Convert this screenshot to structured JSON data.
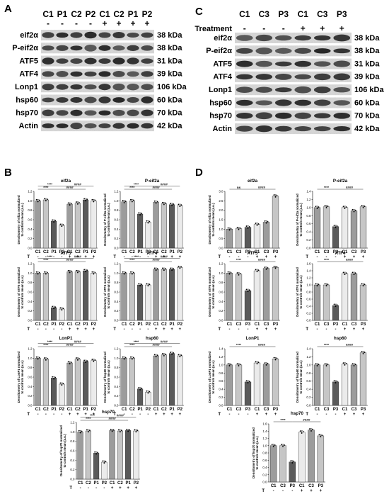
{
  "panels": {
    "A": "A",
    "B": "B",
    "C": "C",
    "D": "D"
  },
  "blotA": {
    "lanes": [
      "C1",
      "P1",
      "C2",
      "P2",
      "C1",
      "C2",
      "P1",
      "P2"
    ],
    "signs": [
      "-",
      "-",
      "-",
      "-",
      "+",
      "+",
      "+",
      "+"
    ],
    "proteins": [
      "eif2α",
      "P-eif2α",
      "ATF5",
      "ATF4",
      "Lonp1",
      "hsp60",
      "hsp70",
      "Actin"
    ],
    "kda": [
      "38 kDa",
      "38 kDa",
      "31 kDa",
      "39 kDa",
      "106 kDa",
      "60 kDa",
      "70 kDa",
      "42 kDa"
    ]
  },
  "blotC": {
    "treatment_label": "Treatment",
    "lanes": [
      "C1",
      "C3",
      "P3",
      "C1",
      "C3",
      "P3"
    ],
    "signs": [
      "-",
      "-",
      "-",
      "+",
      "+",
      "+"
    ],
    "proteins": [
      "eif2α",
      "P-eif2α",
      "ATF5",
      "ATF4",
      "Lonp1",
      "hsp60",
      "hsp70",
      "Actin"
    ],
    "kda": [
      "38 kDa",
      "38 kDa",
      "31 kDa",
      "39 kDa",
      "106 kDa",
      "60 kDa",
      "70 kDa",
      "42 kDa"
    ]
  },
  "chart_data": [
    {
      "type": "bar",
      "panel": "B",
      "title": "eif2a",
      "ylabel": "Densitometry of eif2a normalized to controls mean (a.u.)",
      "categories": [
        "C1",
        "C2",
        "P1",
        "P2",
        "C1",
        "C2",
        "P1",
        "P2"
      ],
      "treatment": [
        "-",
        "-",
        "-",
        "-",
        "+",
        "+",
        "+",
        "+"
      ],
      "values": [
        1.0,
        1.02,
        0.57,
        0.48,
        0.93,
        0.95,
        1.02,
        1.0
      ],
      "colors": [
        "#9c9c9c",
        "#c6c6c6",
        "#5a5a5a",
        "#ebebeb",
        "#9c9c9c",
        "#c6c6c6",
        "#5a5a5a",
        "#ebebeb"
      ],
      "ylim": [
        0,
        1.2
      ],
      "yticks": [
        "0.0",
        "0.2",
        "0.4",
        "0.6",
        "0.8",
        "1.0",
        "1.2"
      ],
      "significance": [
        {
          "from": 0,
          "to": 2,
          "label": "****",
          "level": 0
        },
        {
          "from": 0,
          "to": 3,
          "label": "****",
          "level": 1
        },
        {
          "from": 2,
          "to": 6,
          "label": "####",
          "level": 0
        },
        {
          "from": 3,
          "to": 7,
          "label": "####",
          "level": 1
        }
      ]
    },
    {
      "type": "bar",
      "panel": "B",
      "title": "P-eif2a",
      "ylabel": "Densitometry of P-eif2a normalized to controls mean (a.u.)",
      "categories": [
        "C1",
        "C2",
        "P1",
        "P2",
        "C1",
        "C2",
        "P1",
        "P2"
      ],
      "treatment": [
        "-",
        "-",
        "-",
        "-",
        "+",
        "+",
        "+",
        "+"
      ],
      "values": [
        0.98,
        1.0,
        0.72,
        0.55,
        0.97,
        0.94,
        0.92,
        0.9
      ],
      "colors": [
        "#9c9c9c",
        "#c6c6c6",
        "#5a5a5a",
        "#ebebeb",
        "#9c9c9c",
        "#c6c6c6",
        "#5a5a5a",
        "#ebebeb"
      ],
      "ylim": [
        0,
        1.2
      ],
      "yticks": [
        "0.0",
        "0.2",
        "0.4",
        "0.6",
        "0.8",
        "1.0",
        "1.2"
      ],
      "significance": [
        {
          "from": 0,
          "to": 2,
          "label": "****",
          "level": 0
        },
        {
          "from": 0,
          "to": 3,
          "label": "****",
          "level": 1
        },
        {
          "from": 2,
          "to": 6,
          "label": "####",
          "level": 0
        },
        {
          "from": 3,
          "to": 7,
          "label": "####",
          "level": 1
        }
      ]
    },
    {
      "type": "bar",
      "panel": "D",
      "title": "eif2a",
      "ylabel": "Densitometry of eif2a normalized to controls mean (a.u.)",
      "categories": [
        "C1",
        "C3",
        "P3",
        "C1",
        "C3",
        "P3"
      ],
      "treatment": [
        "-",
        "-",
        "-",
        "+",
        "+",
        "+"
      ],
      "values": [
        1.0,
        1.03,
        1.1,
        1.25,
        1.37,
        2.75
      ],
      "colors": [
        "#9c9c9c",
        "#c6c6c6",
        "#5a5a5a",
        "#ebebeb",
        "#9c9c9c",
        "#c6c6c6"
      ],
      "ylim": [
        0,
        3.0
      ],
      "yticks": [
        "0.0",
        "0.5",
        "1.0",
        "1.5",
        "2.0",
        "2.5",
        "3.0"
      ],
      "significance": [
        {
          "from": 0,
          "to": 2,
          "label": "ns",
          "level": 0
        },
        {
          "from": 2,
          "to": 5,
          "label": "####",
          "level": 0
        }
      ]
    },
    {
      "type": "bar",
      "panel": "D",
      "title": "P-eif2a",
      "ylabel": "Densitometry of P-eif2a normalized to controls mean (a.u.)",
      "categories": [
        "C1",
        "C3",
        "P3",
        "C1",
        "C3",
        "P3"
      ],
      "treatment": [
        "-",
        "-",
        "-",
        "+",
        "+",
        "+"
      ],
      "values": [
        1.0,
        1.02,
        0.53,
        1.0,
        0.92,
        1.02
      ],
      "colors": [
        "#9c9c9c",
        "#c6c6c6",
        "#5a5a5a",
        "#ebebeb",
        "#9c9c9c",
        "#c6c6c6"
      ],
      "ylim": [
        0,
        1.4
      ],
      "yticks": [
        "0.0",
        "0.2",
        "0.4",
        "0.6",
        "0.8",
        "1.0",
        "1.2",
        "1.4"
      ],
      "significance": [
        {
          "from": 0,
          "to": 2,
          "label": "****",
          "level": 0
        },
        {
          "from": 2,
          "to": 5,
          "label": "####",
          "level": 0
        }
      ]
    },
    {
      "type": "bar",
      "panel": "B",
      "title": "ATF5",
      "ylabel": "Densitometry of ATF5 normalized to controls mean (a.u.)",
      "categories": [
        "C1",
        "C2",
        "P1",
        "P2",
        "C1",
        "C2",
        "P1",
        "P2"
      ],
      "treatment": [
        "-",
        "-",
        "-",
        "-",
        "+",
        "+",
        "+",
        "+"
      ],
      "values": [
        1.0,
        1.0,
        0.27,
        0.24,
        1.03,
        1.03,
        1.05,
        1.0
      ],
      "colors": [
        "#9c9c9c",
        "#c6c6c6",
        "#5a5a5a",
        "#ebebeb",
        "#9c9c9c",
        "#c6c6c6",
        "#5a5a5a",
        "#ebebeb"
      ],
      "ylim": [
        0,
        1.2
      ],
      "yticks": [
        "0.0",
        "0.2",
        "0.4",
        "0.6",
        "0.8",
        "1.0",
        "1.2"
      ],
      "significance": [
        {
          "from": 0,
          "to": 2,
          "label": "****",
          "level": 0
        },
        {
          "from": 0,
          "to": 3,
          "label": "****",
          "level": 1
        },
        {
          "from": 2,
          "to": 6,
          "label": "####",
          "level": 0
        },
        {
          "from": 3,
          "to": 7,
          "label": "####",
          "level": 1
        }
      ]
    },
    {
      "type": "bar",
      "panel": "B",
      "title": "ATF4",
      "ylabel": "Densitometry of ATF4 normalized to controls mean (a.u.)",
      "categories": [
        "C1",
        "C2",
        "P1",
        "P2",
        "C1",
        "C2",
        "P1",
        "P2"
      ],
      "treatment": [
        "-",
        "-",
        "-",
        "-",
        "+",
        "+",
        "+",
        "+"
      ],
      "values": [
        1.0,
        1.0,
        0.75,
        0.75,
        1.08,
        1.08,
        1.08,
        1.12
      ],
      "colors": [
        "#9c9c9c",
        "#c6c6c6",
        "#5a5a5a",
        "#ebebeb",
        "#9c9c9c",
        "#c6c6c6",
        "#5a5a5a",
        "#ebebeb"
      ],
      "ylim": [
        0,
        1.2
      ],
      "yticks": [
        "0.0",
        "0.2",
        "0.4",
        "0.6",
        "0.8",
        "1.0",
        "1.2"
      ],
      "significance": [
        {
          "from": 0,
          "to": 2,
          "label": "****",
          "level": 0
        },
        {
          "from": 0,
          "to": 3,
          "label": "****",
          "level": 1
        },
        {
          "from": 2,
          "to": 6,
          "label": "####",
          "level": 0
        },
        {
          "from": 3,
          "to": 7,
          "label": "####",
          "level": 1
        }
      ]
    },
    {
      "type": "bar",
      "panel": "D",
      "title": "ATF5",
      "ylabel": "Densitometry of ATF5 normalized to controls mean (a.u.)",
      "categories": [
        "C1",
        "C3",
        "P3",
        "C1",
        "C3",
        "P3"
      ],
      "treatment": [
        "-",
        "-",
        "-",
        "+",
        "+",
        "+"
      ],
      "values": [
        1.0,
        0.98,
        0.63,
        1.05,
        1.1,
        1.12
      ],
      "colors": [
        "#9c9c9c",
        "#c6c6c6",
        "#5a5a5a",
        "#ebebeb",
        "#9c9c9c",
        "#c6c6c6"
      ],
      "ylim": [
        0,
        1.2
      ],
      "yticks": [
        "0.0",
        "0.2",
        "0.4",
        "0.6",
        "0.8",
        "1.0",
        "1.2"
      ],
      "significance": [
        {
          "from": 0,
          "to": 2,
          "label": "****",
          "level": 0
        },
        {
          "from": 2,
          "to": 5,
          "label": "####",
          "level": 0
        }
      ]
    },
    {
      "type": "bar",
      "panel": "D",
      "title": "ATF4",
      "ylabel": "Densitometry of ATF4 normalized to controls mean (a.u.)",
      "categories": [
        "C1",
        "C3",
        "P3",
        "C1",
        "C3",
        "P3"
      ],
      "treatment": [
        "-",
        "-",
        "-",
        "+",
        "+",
        "+"
      ],
      "values": [
        1.0,
        1.0,
        0.42,
        1.32,
        1.32,
        1.0
      ],
      "colors": [
        "#9c9c9c",
        "#c6c6c6",
        "#5a5a5a",
        "#ebebeb",
        "#9c9c9c",
        "#c6c6c6"
      ],
      "ylim": [
        0,
        1.6
      ],
      "yticks": [
        "0.0",
        "0.2",
        "0.4",
        "0.6",
        "0.8",
        "1.0",
        "1.2",
        "1.4",
        "1.6"
      ],
      "significance": [
        {
          "from": 0,
          "to": 2,
          "label": "****",
          "level": 0
        },
        {
          "from": 2,
          "to": 5,
          "label": "####",
          "level": 0
        }
      ]
    },
    {
      "type": "bar",
      "panel": "B",
      "title": "LonP1",
      "ylabel": "Densitometry of LonP1 normalized to controls mean (a.u.)",
      "categories": [
        "C1",
        "C2",
        "P1",
        "P2",
        "C1",
        "C2",
        "P1",
        "P2"
      ],
      "treatment": [
        "-",
        "-",
        "-",
        "-",
        "+",
        "+",
        "+",
        "+"
      ],
      "values": [
        1.0,
        0.98,
        0.58,
        0.45,
        0.9,
        0.98,
        0.93,
        0.95
      ],
      "colors": [
        "#9c9c9c",
        "#c6c6c6",
        "#5a5a5a",
        "#ebebeb",
        "#9c9c9c",
        "#c6c6c6",
        "#5a5a5a",
        "#ebebeb"
      ],
      "ylim": [
        0,
        1.2
      ],
      "yticks": [
        "0.0",
        "0.2",
        "0.4",
        "0.6",
        "0.8",
        "1.0",
        "1.2"
      ],
      "significance": [
        {
          "from": 0,
          "to": 2,
          "label": "****",
          "level": 0
        },
        {
          "from": 0,
          "to": 3,
          "label": "****",
          "level": 1
        },
        {
          "from": 2,
          "to": 6,
          "label": "####",
          "level": 0
        },
        {
          "from": 3,
          "to": 7,
          "label": "####",
          "level": 1
        }
      ]
    },
    {
      "type": "bar",
      "panel": "B",
      "title": "hsp60",
      "ylabel": "Densitometry of hsp60 normalized to controls mean (a.u.)",
      "categories": [
        "C1",
        "C2",
        "P1",
        "P2",
        "C1",
        "C2",
        "P1",
        "P2"
      ],
      "treatment": [
        "-",
        "-",
        "-",
        "-",
        "+",
        "+",
        "+",
        "+"
      ],
      "values": [
        1.0,
        1.0,
        0.35,
        0.28,
        1.05,
        1.07,
        1.1,
        1.05
      ],
      "colors": [
        "#9c9c9c",
        "#c6c6c6",
        "#5a5a5a",
        "#ebebeb",
        "#9c9c9c",
        "#c6c6c6",
        "#5a5a5a",
        "#ebebeb"
      ],
      "ylim": [
        0,
        1.2
      ],
      "yticks": [
        "0.0",
        "0.2",
        "0.4",
        "0.6",
        "0.8",
        "1.0",
        "1.2"
      ],
      "significance": [
        {
          "from": 0,
          "to": 2,
          "label": "****",
          "level": 0
        },
        {
          "from": 0,
          "to": 3,
          "label": "****",
          "level": 1
        },
        {
          "from": 2,
          "to": 6,
          "label": "####",
          "level": 0
        },
        {
          "from": 3,
          "to": 7,
          "label": "####",
          "level": 1
        }
      ]
    },
    {
      "type": "bar",
      "panel": "D",
      "title": "LonP1",
      "ylabel": "Densitometry of LonP1 normalized to controls mean (a.u.)",
      "categories": [
        "C1",
        "C3",
        "P3",
        "C1",
        "C3",
        "P3"
      ],
      "treatment": [
        "-",
        "-",
        "-",
        "+",
        "+",
        "+"
      ],
      "values": [
        1.0,
        1.0,
        0.58,
        1.05,
        1.02,
        1.15
      ],
      "colors": [
        "#9c9c9c",
        "#c6c6c6",
        "#5a5a5a",
        "#ebebeb",
        "#9c9c9c",
        "#c6c6c6"
      ],
      "ylim": [
        0,
        1.4
      ],
      "yticks": [
        "0.0",
        "0.2",
        "0.4",
        "0.6",
        "0.8",
        "1.0",
        "1.2",
        "1.4"
      ],
      "significance": [
        {
          "from": 0,
          "to": 2,
          "label": "****",
          "level": 0
        },
        {
          "from": 2,
          "to": 5,
          "label": "####",
          "level": 0
        }
      ]
    },
    {
      "type": "bar",
      "panel": "D",
      "title": "hsp60",
      "ylabel": "Densitometry of hsp60 normalized to controls mean (a.u.)",
      "categories": [
        "C1",
        "C3",
        "P3",
        "C1",
        "C3",
        "P3"
      ],
      "treatment": [
        "-",
        "-",
        "-",
        "+",
        "+",
        "+"
      ],
      "values": [
        1.0,
        1.0,
        0.58,
        1.02,
        1.0,
        1.3
      ],
      "colors": [
        "#9c9c9c",
        "#c6c6c6",
        "#5a5a5a",
        "#ebebeb",
        "#9c9c9c",
        "#c6c6c6"
      ],
      "ylim": [
        0,
        1.4
      ],
      "yticks": [
        "0.0",
        "0.2",
        "0.4",
        "0.6",
        "0.8",
        "1.0",
        "1.2",
        "1.4"
      ],
      "significance": [
        {
          "from": 0,
          "to": 2,
          "label": "****",
          "level": 0
        },
        {
          "from": 2,
          "to": 5,
          "label": "####",
          "level": 0
        }
      ]
    },
    {
      "type": "bar",
      "panel": "B",
      "title": "hsp70",
      "ylabel": "Densitometry of hsp70 normalized to controls mean (a.u.)",
      "categories": [
        "C1",
        "C2",
        "P1",
        "P2",
        "C1",
        "C2",
        "P1",
        "P2"
      ],
      "treatment": [
        "-",
        "-",
        "-",
        "-",
        "+",
        "+",
        "+",
        "+"
      ],
      "values": [
        1.0,
        1.02,
        0.55,
        0.36,
        1.03,
        1.02,
        1.03,
        1.02
      ],
      "colors": [
        "#9c9c9c",
        "#c6c6c6",
        "#5a5a5a",
        "#ebebeb",
        "#9c9c9c",
        "#c6c6c6",
        "#5a5a5a",
        "#ebebeb"
      ],
      "ylim": [
        0,
        1.2
      ],
      "yticks": [
        "0.0",
        "0.2",
        "0.4",
        "0.6",
        "0.8",
        "1.0",
        "1.2"
      ],
      "significance": [
        {
          "from": 0,
          "to": 2,
          "label": "****",
          "level": 0
        },
        {
          "from": 0,
          "to": 3,
          "label": "****",
          "level": 1
        },
        {
          "from": 2,
          "to": 6,
          "label": "####",
          "level": 0
        },
        {
          "from": 3,
          "to": 7,
          "label": "####",
          "level": 1
        }
      ]
    },
    {
      "type": "bar",
      "panel": "D",
      "title": "hsp70",
      "ylabel": "Densitometry of hsp70 normalized to controls mean (a.u.)",
      "categories": [
        "C1",
        "C3",
        "P3",
        "C1",
        "C3",
        "P3"
      ],
      "treatment": [
        "-",
        "-",
        "-",
        "+",
        "+",
        "+"
      ],
      "values": [
        1.0,
        1.0,
        0.55,
        1.37,
        1.43,
        1.27
      ],
      "colors": [
        "#9c9c9c",
        "#c6c6c6",
        "#5a5a5a",
        "#ebebeb",
        "#9c9c9c",
        "#c6c6c6"
      ],
      "ylim": [
        0,
        1.6
      ],
      "yticks": [
        "0.0",
        "0.2",
        "0.4",
        "0.6",
        "0.8",
        "1.0",
        "1.2",
        "1.4",
        "1.6"
      ],
      "significance": [
        {
          "from": 0,
          "to": 2,
          "label": "****",
          "level": 0
        },
        {
          "from": 2,
          "to": 5,
          "label": "####",
          "level": 0
        }
      ]
    }
  ]
}
